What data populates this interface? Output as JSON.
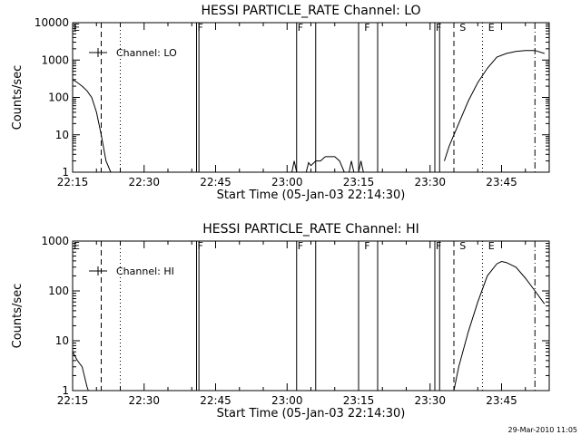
{
  "footer": {
    "stamp": "29-Mar-2010 11:05"
  },
  "chart_data": [
    {
      "type": "line",
      "title": "HESSI PARTICLE_RATE Channel: LO",
      "xlabel": "Start Time (05-Jan-03 22:14:30)",
      "ylabel": "Counts/sec",
      "yscale": "log",
      "xlim": [
        "22:15",
        "23:55"
      ],
      "ylim": [
        1,
        10000
      ],
      "xticks": [
        "22:15",
        "22:30",
        "22:45",
        "23:00",
        "23:15",
        "23:30",
        "23:45"
      ],
      "yticks": [
        "1",
        "10",
        "100",
        "1000",
        "10000"
      ],
      "legend": {
        "label": "Channel: LO",
        "placement": "top-left"
      },
      "series": [
        {
          "name": "Channel: LO",
          "segments": [
            [
              [
                "22:15",
                300
              ],
              [
                "22:16",
                250
              ],
              [
                "22:17",
                200
              ],
              [
                "22:18",
                150
              ],
              [
                "22:19",
                100
              ],
              [
                "22:20",
                40
              ],
              [
                "22:21",
                10
              ],
              [
                "22:22",
                2
              ],
              [
                "22:23",
                1
              ]
            ],
            [
              [
                "23:01",
                1
              ],
              [
                "23:01.5",
                2
              ],
              [
                "23:02",
                1
              ]
            ],
            [
              [
                "23:04",
                1
              ],
              [
                "23:04.5",
                1.8
              ],
              [
                "23:05",
                1.5
              ],
              [
                "23:06",
                2
              ],
              [
                "23:07",
                2
              ],
              [
                "23:08",
                2.6
              ],
              [
                "23:10",
                2.6
              ],
              [
                "23:11",
                2
              ],
              [
                "23:12",
                1
              ]
            ],
            [
              [
                "23:13",
                1
              ],
              [
                "23:13.5",
                2
              ],
              [
                "23:14",
                1
              ]
            ],
            [
              [
                "23:15",
                1
              ],
              [
                "23:15.5",
                2
              ],
              [
                "23:16",
                1
              ]
            ],
            [
              [
                "23:33",
                2
              ],
              [
                "23:34",
                5
              ],
              [
                "23:36",
                20
              ],
              [
                "23:38",
                80
              ],
              [
                "23:40",
                250
              ],
              [
                "23:42",
                600
              ],
              [
                "23:44",
                1200
              ],
              [
                "23:46",
                1500
              ],
              [
                "23:48",
                1700
              ],
              [
                "23:50",
                1800
              ],
              [
                "23:52",
                1800
              ],
              [
                "23:54",
                1500
              ]
            ]
          ]
        }
      ],
      "markers": [
        {
          "label": "E",
          "time": "22:15"
        },
        {
          "label": "F",
          "time": "22:41"
        },
        {
          "label": "F",
          "time": "23:02"
        },
        {
          "label": "F",
          "time": "23:16"
        },
        {
          "label": "F",
          "time": "23:31"
        },
        {
          "label": "S",
          "time": "23:36"
        },
        {
          "label": "E",
          "time": "23:42"
        }
      ],
      "flag_lines": [
        "22:41",
        "22:41.5",
        "23:02",
        "23:06",
        "23:15",
        "23:19",
        "23:31",
        "23:32"
      ],
      "dashed_lines": [
        "22:21",
        "23:35"
      ],
      "dotted_lines": [
        "22:25",
        "23:41"
      ],
      "dashdot_lines": [
        "23:52"
      ]
    },
    {
      "type": "line",
      "title": "HESSI PARTICLE_RATE Channel: HI",
      "xlabel": "Start Time (05-Jan-03 22:14:30)",
      "ylabel": "Counts/sec",
      "yscale": "log",
      "xlim": [
        "22:15",
        "23:55"
      ],
      "ylim": [
        1,
        1000
      ],
      "xticks": [
        "22:15",
        "22:30",
        "22:45",
        "23:00",
        "23:15",
        "23:30",
        "23:45"
      ],
      "yticks": [
        "1",
        "10",
        "100",
        "1000"
      ],
      "legend": {
        "label": "Channel: HI",
        "placement": "top-left"
      },
      "series": [
        {
          "name": "Channel: HI",
          "segments": [
            [
              [
                "22:15",
                6
              ],
              [
                "22:16",
                4
              ],
              [
                "22:17",
                3
              ],
              [
                "22:18",
                1.2
              ],
              [
                "22:18.3",
                1
              ]
            ],
            [
              [
                "23:35",
                1
              ],
              [
                "23:36",
                3
              ],
              [
                "23:38",
                15
              ],
              [
                "23:40",
                60
              ],
              [
                "23:42",
                200
              ],
              [
                "23:44",
                350
              ],
              [
                "23:45",
                390
              ],
              [
                "23:46",
                370
              ],
              [
                "23:48",
                300
              ],
              [
                "23:50",
                180
              ],
              [
                "23:52",
                100
              ],
              [
                "23:54",
                55
              ]
            ]
          ]
        }
      ],
      "markers": [
        {
          "label": "E",
          "time": "22:15"
        },
        {
          "label": "F",
          "time": "22:41"
        },
        {
          "label": "F",
          "time": "23:02"
        },
        {
          "label": "F",
          "time": "23:16"
        },
        {
          "label": "F",
          "time": "23:31"
        },
        {
          "label": "S",
          "time": "23:36"
        },
        {
          "label": "E",
          "time": "23:42"
        }
      ],
      "flag_lines": [
        "22:41",
        "22:41.5",
        "23:02",
        "23:06",
        "23:15",
        "23:19",
        "23:31",
        "23:32"
      ],
      "dashed_lines": [
        "22:21",
        "23:35"
      ],
      "dotted_lines": [
        "22:25",
        "23:41"
      ],
      "dashdot_lines": [
        "23:52"
      ]
    }
  ]
}
